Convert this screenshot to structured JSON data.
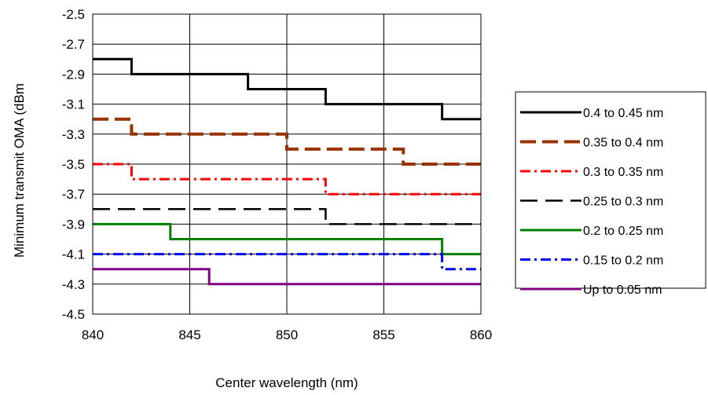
{
  "chart_data": {
    "type": "line",
    "title": "",
    "xlabel": "Center wavelength (nm)",
    "ylabel": "Minimum transmit OMA (dBm",
    "xlim": [
      840,
      860
    ],
    "ylim": [
      -4.5,
      -2.5
    ],
    "xticks": [
      "840",
      "845",
      "850",
      "855",
      "860"
    ],
    "yticks": [
      "-2.5",
      "-2.7",
      "-2.9",
      "-3.1",
      "-3.3",
      "-3.5",
      "-3.7",
      "-3.9",
      "-4.1",
      "-4.3",
      "-4.5"
    ],
    "grid": true,
    "legend_position": "right",
    "series": [
      {
        "name": "0.4 to 0.45 nm",
        "color": "#000000",
        "style": "solid",
        "x": [
          840,
          842,
          842,
          848,
          848,
          852,
          852,
          858,
          858,
          860
        ],
        "y": [
          -2.8,
          -2.8,
          -2.9,
          -2.9,
          -3.0,
          -3.0,
          -3.1,
          -3.1,
          -3.2,
          -3.2
        ]
      },
      {
        "name": "0.35 to 0.4 nm",
        "color": "#993300",
        "style": "dash",
        "x": [
          840,
          842,
          842,
          850,
          850,
          856,
          856,
          860
        ],
        "y": [
          -3.2,
          -3.2,
          -3.3,
          -3.3,
          -3.4,
          -3.4,
          -3.5,
          -3.5
        ]
      },
      {
        "name": "0.3 to 0.35 nm",
        "color": "#ff0000",
        "style": "dashdot",
        "x": [
          840,
          842,
          842,
          852,
          852,
          860
        ],
        "y": [
          -3.5,
          -3.5,
          -3.6,
          -3.6,
          -3.7,
          -3.7
        ]
      },
      {
        "name": "0.25 to 0.3 nm",
        "color": "#000000",
        "style": "dash-thin",
        "x": [
          840,
          852,
          852,
          860
        ],
        "y": [
          -3.8,
          -3.8,
          -3.9,
          -3.9
        ]
      },
      {
        "name": "0.2 to 0.25 nm",
        "color": "#008000",
        "style": "solid",
        "x": [
          840,
          844,
          844,
          858,
          858,
          860
        ],
        "y": [
          -3.9,
          -3.9,
          -4.0,
          -4.0,
          -4.1,
          -4.1
        ]
      },
      {
        "name": "0.15 to 0.2 nm",
        "color": "#0000ff",
        "style": "dashdot",
        "x": [
          840,
          858,
          858,
          860
        ],
        "y": [
          -4.1,
          -4.1,
          -4.2,
          -4.2
        ]
      },
      {
        "name": "Up to 0.05 nm",
        "color": "#800080",
        "style": "solid",
        "x": [
          840,
          846,
          846,
          860
        ],
        "y": [
          -4.2,
          -4.2,
          -4.3,
          -4.3
        ]
      }
    ]
  }
}
